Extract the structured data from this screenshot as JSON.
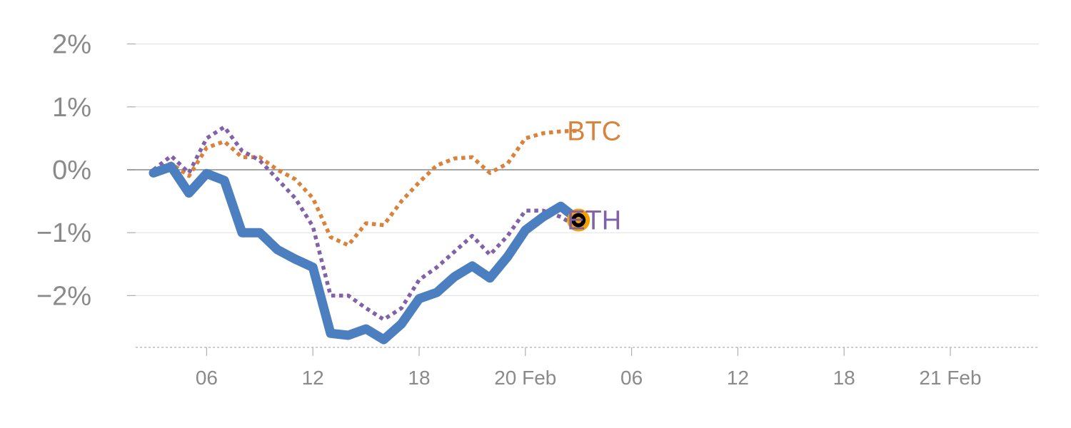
{
  "chart_data": {
    "type": "line",
    "title": "",
    "xlabel": "",
    "ylabel": "",
    "y_unit": "%",
    "ylim": [
      -2.8,
      2.2
    ],
    "yticks": [
      {
        "value": 2,
        "label": "2%"
      },
      {
        "value": 1,
        "label": "1%"
      },
      {
        "value": 0,
        "label": "0%"
      },
      {
        "value": -1,
        "label": "−1%"
      },
      {
        "value": -2,
        "label": "−2%"
      }
    ],
    "xlim": [
      2,
      53
    ],
    "xticks": [
      {
        "hour": 6,
        "label": "06"
      },
      {
        "hour": 12,
        "label": "12"
      },
      {
        "hour": 18,
        "label": "18"
      },
      {
        "hour": 24,
        "label": "20 Feb"
      },
      {
        "hour": 30,
        "label": "06"
      },
      {
        "hour": 36,
        "label": "12"
      },
      {
        "hour": 42,
        "label": "18"
      },
      {
        "hour": 48,
        "label": "21 Feb"
      }
    ],
    "x_units": "hours",
    "grid": true,
    "colors": {
      "main": "#4c7fc0",
      "btc": "#d9823b",
      "eth": "#8162a8",
      "marker_ring": "#f5a100",
      "marker_center": "#000000",
      "grid": "#e5e5e5",
      "zero_line": "#888888",
      "tick_text": "#8a8a8a"
    },
    "series": [
      {
        "style": "solid",
        "color_key": "main",
        "x": [
          3,
          4,
          5,
          6,
          7,
          8,
          9,
          10,
          11,
          12,
          13,
          14,
          15,
          16,
          17,
          18,
          19,
          20,
          21,
          22,
          23,
          24,
          25,
          26,
          27
        ],
        "y": [
          -0.05,
          0.05,
          -0.37,
          -0.06,
          -0.17,
          -1.0,
          -1.0,
          -1.27,
          -1.42,
          -1.55,
          -2.6,
          -2.63,
          -2.53,
          -2.7,
          -2.45,
          -2.05,
          -1.95,
          -1.7,
          -1.53,
          -1.72,
          -1.38,
          -0.96,
          -0.75,
          -0.58,
          -0.8
        ]
      },
      {
        "name": "BTC",
        "style": "dotted",
        "color_key": "btc",
        "x": [
          3,
          4,
          5,
          6,
          7,
          8,
          9,
          10,
          11,
          12,
          13,
          14,
          15,
          16,
          17,
          18,
          19,
          20,
          21,
          22,
          23,
          24,
          25,
          26,
          27
        ],
        "y": [
          0.0,
          0.1,
          -0.1,
          0.35,
          0.45,
          0.2,
          0.2,
          0.0,
          -0.15,
          -0.45,
          -1.07,
          -1.2,
          -0.85,
          -0.88,
          -0.5,
          -0.2,
          0.07,
          0.18,
          0.2,
          -0.05,
          0.1,
          0.5,
          0.58,
          0.61,
          0.62
        ]
      },
      {
        "name": "ETH",
        "style": "dotted",
        "color_key": "eth",
        "x": [
          3,
          4,
          5,
          6,
          7,
          8,
          9,
          10,
          11,
          12,
          13,
          14,
          15,
          16,
          17,
          18,
          19,
          20,
          21,
          22,
          23,
          24,
          25,
          26,
          27
        ],
        "y": [
          0.0,
          0.22,
          -0.05,
          0.5,
          0.68,
          0.3,
          0.15,
          -0.15,
          -0.45,
          -0.9,
          -2.0,
          -2.0,
          -2.2,
          -2.38,
          -2.2,
          -1.75,
          -1.55,
          -1.3,
          -1.05,
          -1.35,
          -1.05,
          -0.65,
          -0.65,
          -0.75,
          -0.92
        ]
      }
    ],
    "marker": {
      "x": 27,
      "y": -0.8
    },
    "annotations": [
      {
        "text": "BTC",
        "color_key": "btc",
        "x": 27,
        "y": 0.62
      },
      {
        "text": "ETH",
        "color_key": "eth",
        "x": 27,
        "y": -0.8
      }
    ]
  }
}
